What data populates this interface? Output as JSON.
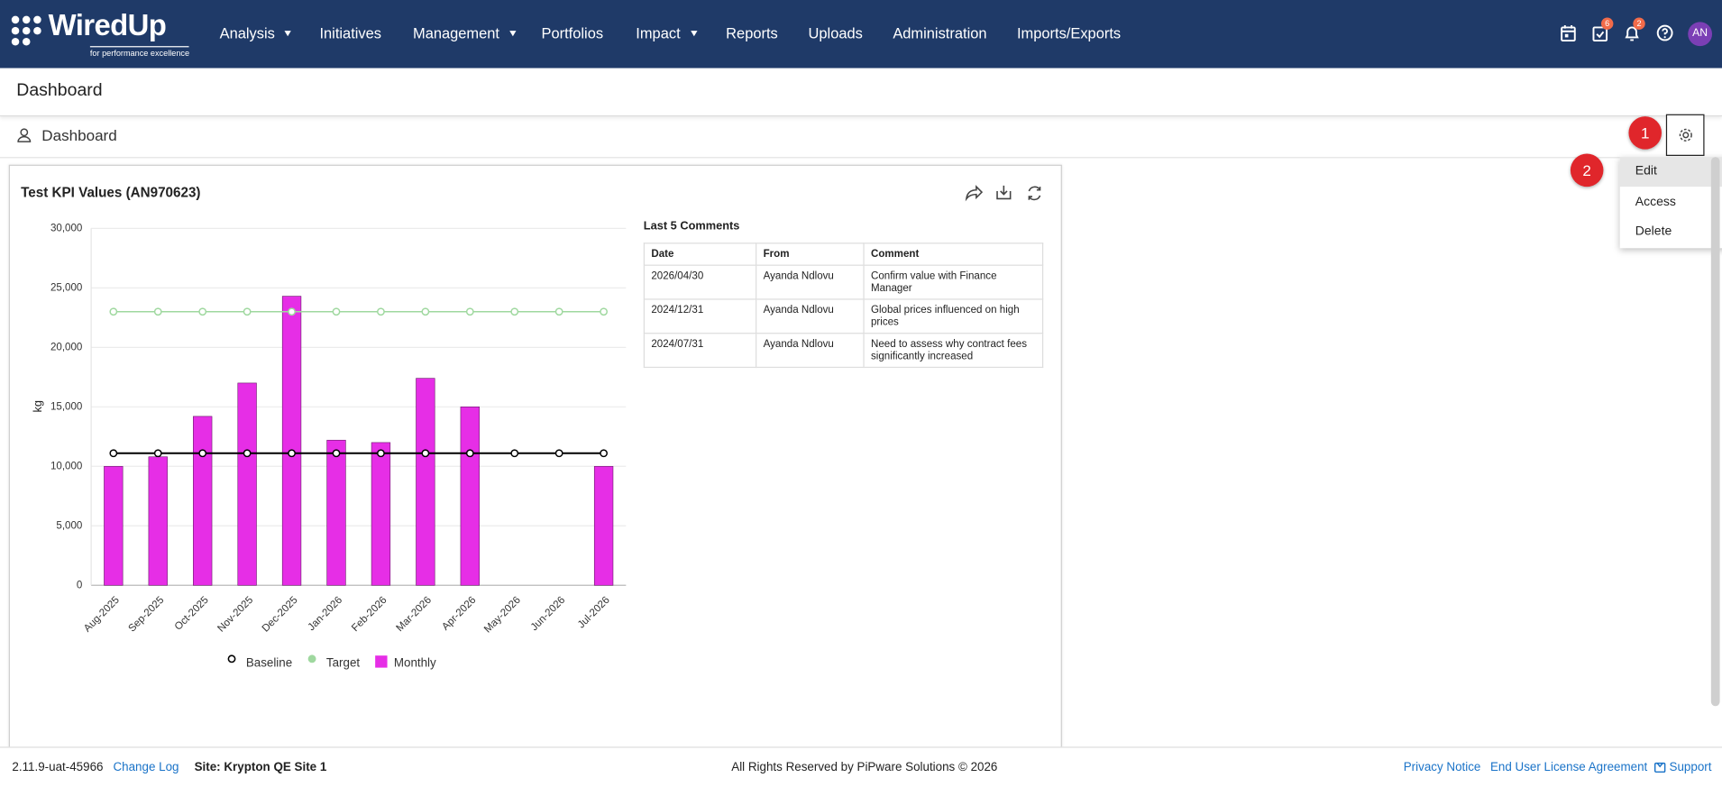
{
  "nav": {
    "logo": "WiredUp",
    "tagline": "for performance excellence",
    "items": [
      "Analysis",
      "Initiatives",
      "Management",
      "Portfolios",
      "Impact",
      "Reports",
      "Uploads",
      "Administration",
      "Imports/Exports"
    ],
    "task_badge": 6,
    "notification_badge": 2,
    "avatar": "AN"
  },
  "header": {
    "title": "Dashboard"
  },
  "toolbar": {
    "dashboard": "Dashboard"
  },
  "annotations": [
    "1",
    "2"
  ],
  "settings_menu": [
    "Edit",
    "Access",
    "Delete"
  ],
  "chart_data": {
    "type": "bar",
    "title": "Test KPI Values (AN970623)",
    "ylabel": "kg",
    "categories": [
      "Aug-2025",
      "Sep-2025",
      "Oct-2025",
      "Nov-2025",
      "Dec-2025",
      "Jan-2026",
      "Feb-2026",
      "Mar-2026",
      "Apr-2026",
      "May-2026",
      "Jun-2026",
      "Jul-2026"
    ],
    "series": [
      {
        "name": "Baseline",
        "type": "line",
        "color": "#000000",
        "values": [
          11100,
          11100,
          11100,
          11100,
          11100,
          11100,
          11100,
          11100,
          11100,
          11100,
          11100,
          11100
        ]
      },
      {
        "name": "Target",
        "type": "line",
        "color": "#9fd89f",
        "values": [
          23000,
          23000,
          23000,
          23000,
          23000,
          23000,
          23000,
          23000,
          23000,
          23000,
          23000,
          23000
        ]
      },
      {
        "name": "Monthly",
        "type": "bar",
        "color": "#e62ee6",
        "values": [
          10000,
          10800,
          14200,
          17000,
          24300,
          12200,
          12000,
          17400,
          15000,
          null,
          null,
          10000
        ]
      }
    ],
    "ylim": [
      0,
      30000
    ],
    "yticks": [
      0,
      {
        "value": 5000,
        "label": "5,000"
      },
      {
        "value": 10000,
        "label": "10,000"
      },
      {
        "value": 15000,
        "label": "15,000"
      },
      {
        "value": 20000,
        "label": "20,000"
      },
      {
        "value": 25000,
        "label": "25,000"
      },
      {
        "value": 30000,
        "label": "30,000"
      }
    ],
    "grid": true
  },
  "comments": {
    "title": "Last 5 Comments",
    "columns": [
      "Date",
      "From",
      "Comment"
    ],
    "rows": [
      [
        "2026/04/30",
        "Ayanda Ndlovu",
        "Confirm value with Finance Manager"
      ],
      [
        "2024/12/31",
        "Ayanda Ndlovu",
        "Global prices influenced on high prices"
      ],
      [
        "2024/07/31",
        "Ayanda Ndlovu",
        "Need to assess why contract fees significantly increased"
      ]
    ]
  },
  "footer": {
    "version": "2.11.9-uat-45966",
    "changelog": "Change Log",
    "site": "Site: Krypton QE Site 1",
    "copyright": "All Rights Reserved by PiPware Solutions © 2026",
    "privacy": "Privacy Notice",
    "eula": "End User License Agreement",
    "support": "Support"
  }
}
